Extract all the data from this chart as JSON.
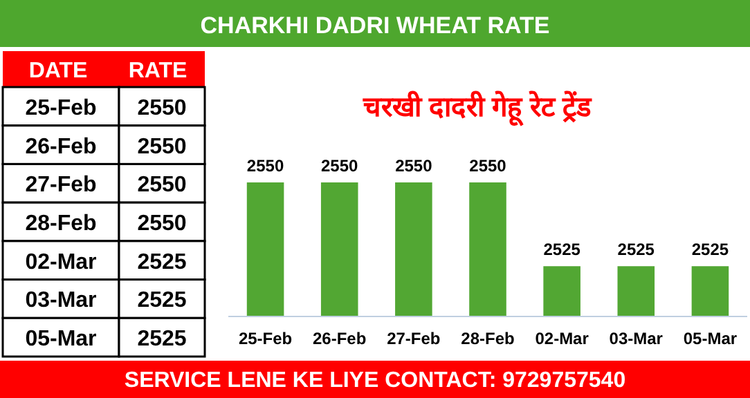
{
  "chart_data": {
    "type": "bar",
    "title": "CHARKHI DADRI WHEAT RATE",
    "subtitle": "चरखी दादरी  गेहू रेट ट्रेंड",
    "categories": [
      "25-Feb",
      "26-Feb",
      "27-Feb",
      "28-Feb",
      "02-Mar",
      "03-Mar",
      "05-Mar"
    ],
    "values": [
      2550,
      2550,
      2550,
      2550,
      2525,
      2525,
      2525
    ],
    "color": "#52a733",
    "ylim": [
      2510,
      2550
    ],
    "data_labels": true,
    "annotations": [
      "DATE",
      "RATE",
      "SERVICE LENE KE LIYE CONTACT: 9729757540",
      "2550",
      "2550",
      "2550",
      "2550",
      "2525",
      "2525",
      "2525"
    ]
  }
}
